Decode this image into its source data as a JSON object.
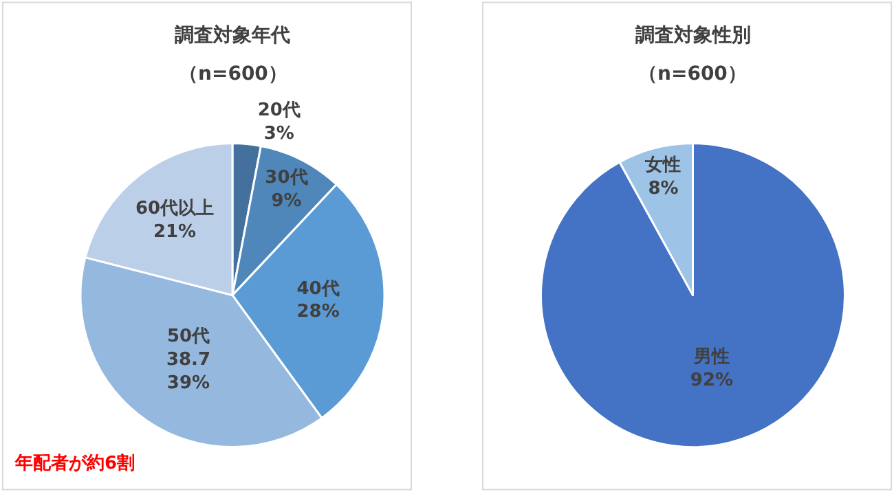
{
  "chart_data": [
    {
      "type": "pie",
      "title": "調査対象年代",
      "subtitle": "（n=600）",
      "categories": [
        "20代",
        "30代",
        "40代",
        "50代",
        "60代以上"
      ],
      "values": [
        3,
        9,
        28,
        39,
        21
      ],
      "value_labels": [
        "3%",
        "9%",
        "28%",
        "38.7\n39%",
        "21%"
      ],
      "colors": [
        "#44709d",
        "#4f87bb",
        "#5b9bd5",
        "#95b8df",
        "#bccfe9"
      ],
      "annotations": [
        "年配者が約6割"
      ]
    },
    {
      "type": "pie",
      "title": "調査対象性別",
      "subtitle": "（n=600）",
      "categories": [
        "男性",
        "女性"
      ],
      "values": [
        92,
        8
      ],
      "value_labels": [
        "92%",
        "8%"
      ],
      "colors": [
        "#4472c4",
        "#9dc3e6"
      ]
    }
  ]
}
